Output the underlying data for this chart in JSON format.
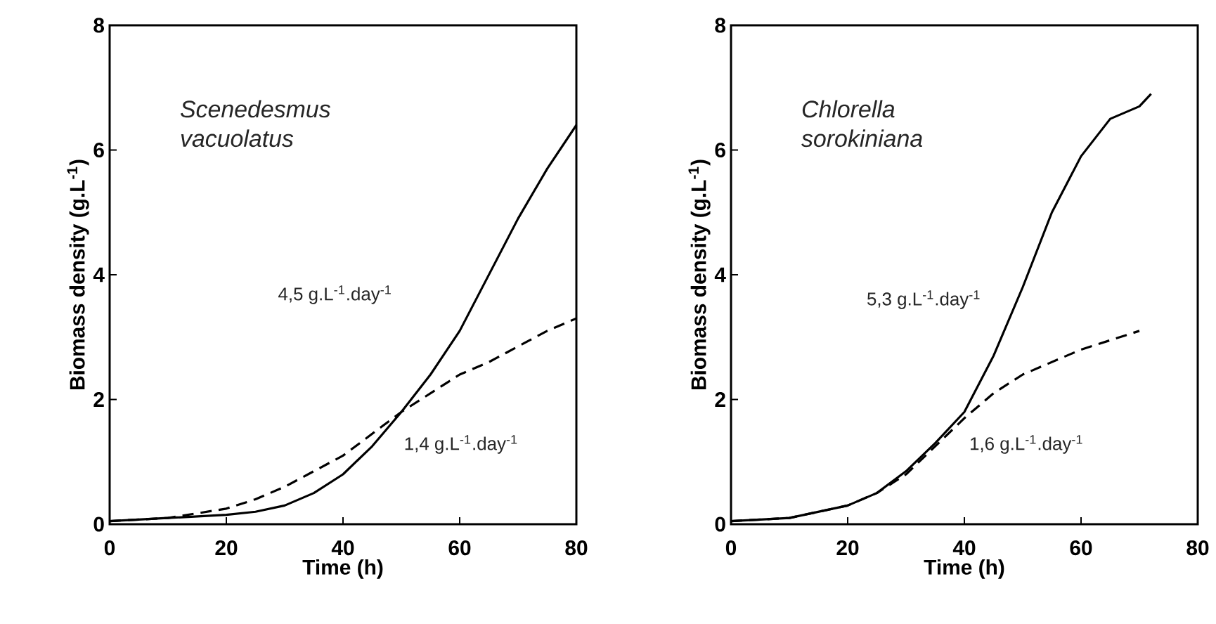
{
  "chart_data": [
    {
      "type": "line",
      "xlabel": "Time (h)",
      "ylabel": "Biomass density (g.L$^{-1}$)",
      "xlim": [
        0,
        80
      ],
      "ylim": [
        0,
        8
      ],
      "xticks": [
        0,
        20,
        40,
        60,
        80
      ],
      "yticks": [
        0,
        2,
        4,
        6,
        8
      ],
      "marker": "none",
      "annotations": [
        "*Scenedesmus vacuolatus*",
        "4,5  g.L$^{-1}$.day$^{-1}$",
        "1,4  g.L$^{-1}$.day$^{-1}$"
      ],
      "series": [
        {
          "color": "#000000",
          "line_style": "solid",
          "x": [
            0,
            10,
            20,
            25,
            30,
            35,
            40,
            45,
            50,
            55,
            60,
            65,
            70,
            75,
            80
          ],
          "values": [
            0.05,
            0.1,
            0.15,
            0.2,
            0.3,
            0.5,
            0.8,
            1.25,
            1.8,
            2.4,
            3.1,
            4.0,
            4.9,
            5.7,
            6.4
          ]
        },
        {
          "color": "#000000",
          "line_style": "dashed",
          "x": [
            0,
            10,
            20,
            25,
            30,
            35,
            40,
            45,
            50,
            55,
            60,
            65,
            70,
            75,
            80
          ],
          "values": [
            0.05,
            0.1,
            0.25,
            0.4,
            0.6,
            0.85,
            1.1,
            1.45,
            1.8,
            2.1,
            2.4,
            2.6,
            2.85,
            3.1,
            3.3
          ]
        }
      ]
    },
    {
      "type": "line",
      "xlabel": "Time (h)",
      "ylabel": "Biomass density (g.L$^{-1}$)",
      "xlim": [
        0,
        80
      ],
      "ylim": [
        0,
        8
      ],
      "xticks": [
        0,
        20,
        40,
        60,
        80
      ],
      "yticks": [
        0,
        2,
        4,
        6,
        8
      ],
      "marker": "none",
      "annotations": [
        "*Chlorella sorokiniana*",
        "5,3  g.L$^{-1}$.day$^{-1}$",
        "1,6  g.L$^{-1}$.day$^{-1}$"
      ],
      "series": [
        {
          "color": "#000000",
          "line_style": "solid",
          "x": [
            0,
            10,
            20,
            25,
            30,
            35,
            40,
            45,
            50,
            55,
            60,
            65,
            70,
            72
          ],
          "values": [
            0.05,
            0.1,
            0.3,
            0.5,
            0.85,
            1.3,
            1.8,
            2.7,
            3.8,
            5.0,
            5.9,
            6.5,
            6.7,
            6.9
          ]
        },
        {
          "color": "#000000",
          "line_style": "dashed",
          "x": [
            0,
            10,
            20,
            25,
            30,
            35,
            40,
            45,
            50,
            55,
            60,
            65,
            70
          ],
          "values": [
            0.05,
            0.1,
            0.3,
            0.5,
            0.8,
            1.25,
            1.7,
            2.1,
            2.4,
            2.6,
            2.8,
            2.95,
            3.1
          ]
        }
      ]
    }
  ]
}
